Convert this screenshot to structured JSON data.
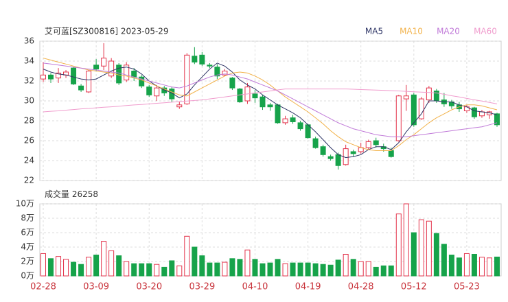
{
  "chart_data": {
    "type": "candlestick",
    "title": "艾可蓝[SZ300816] 2023-05-29",
    "categories": [
      "02-28",
      null,
      null,
      null,
      null,
      null,
      null,
      "03-09",
      null,
      null,
      null,
      null,
      null,
      null,
      "03-20",
      null,
      null,
      null,
      null,
      null,
      null,
      "03-29",
      null,
      null,
      null,
      null,
      null,
      null,
      "04-10",
      null,
      null,
      null,
      null,
      null,
      null,
      "04-19",
      null,
      null,
      null,
      null,
      null,
      null,
      "04-28",
      null,
      null,
      null,
      null,
      null,
      null,
      "05-12",
      null,
      null,
      null,
      null,
      null,
      null,
      "05-23",
      null,
      null,
      null,
      null
    ],
    "open": [
      32.2,
      32.6,
      32.3,
      32.6,
      33.3,
      31.5,
      30.9,
      33.6,
      33.5,
      32.5,
      33.6,
      32.1,
      33.0,
      32.4,
      31.4,
      30.5,
      31.3,
      31.2,
      29.4,
      29.7,
      34.5,
      34.6,
      33.6,
      33.4,
      32.6,
      32.3,
      31.2,
      30.0,
      30.7,
      30.4,
      29.6,
      29.6,
      27.8,
      28.3,
      27.8,
      27.6,
      26.2,
      25.4,
      24.4,
      24.6,
      23.6,
      24.9,
      24.9,
      25.3,
      26.0,
      25.4,
      25.0,
      26.0,
      30.2,
      30.6,
      28.2,
      30.1,
      31.0,
      30.1,
      29.9,
      29.6,
      29.0,
      29.3,
      28.5,
      28.6,
      28.7
    ],
    "high": [
      33.9,
      32.8,
      33.3,
      33.1,
      33.4,
      31.7,
      33.1,
      34.2,
      35.8,
      34.3,
      33.8,
      33.9,
      33.3,
      32.6,
      31.6,
      31.6,
      31.5,
      31.4,
      29.9,
      34.8,
      35.4,
      34.9,
      33.8,
      33.7,
      33.2,
      32.4,
      31.3,
      31.8,
      31.1,
      30.6,
      29.8,
      29.7,
      28.5,
      28.6,
      28.0,
      27.7,
      26.4,
      25.6,
      24.6,
      24.8,
      25.6,
      25.1,
      25.8,
      26.1,
      26.3,
      25.7,
      25.3,
      30.6,
      31.6,
      30.8,
      30.4,
      31.5,
      31.2,
      30.8,
      30.1,
      29.9,
      29.6,
      29.4,
      29.1,
      29.0,
      28.8
    ],
    "low": [
      31.9,
      31.8,
      31.8,
      32.3,
      31.6,
      30.9,
      30.8,
      33.0,
      33.1,
      32.3,
      31.6,
      31.9,
      32.0,
      31.3,
      30.4,
      30.0,
      30.5,
      29.9,
      29.2,
      29.6,
      33.7,
      33.5,
      33.3,
      32.2,
      32.5,
      31.1,
      29.8,
      29.7,
      29.8,
      29.1,
      29.0,
      27.7,
      27.6,
      27.7,
      27.0,
      26.2,
      25.2,
      24.4,
      24.0,
      23.1,
      23.5,
      24.4,
      24.7,
      25.1,
      25.3,
      24.9,
      24.3,
      25.9,
      29.0,
      27.4,
      28.1,
      29.8,
      29.8,
      29.4,
      29.2,
      28.9,
      28.8,
      28.2,
      28.3,
      28.2,
      27.4
    ],
    "close": [
      32.6,
      32.2,
      32.8,
      32.9,
      31.7,
      31.1,
      33.0,
      33.2,
      34.3,
      34.0,
      31.8,
      33.6,
      32.4,
      31.5,
      30.6,
      31.3,
      30.8,
      30.2,
      29.6,
      34.6,
      33.9,
      33.7,
      33.5,
      32.5,
      33.0,
      31.3,
      29.9,
      31.4,
      30.3,
      29.4,
      29.4,
      27.8,
      28.2,
      27.9,
      27.2,
      26.3,
      25.3,
      24.6,
      24.2,
      23.5,
      25.2,
      24.7,
      25.3,
      25.9,
      25.6,
      25.2,
      24.4,
      30.5,
      30.5,
      27.6,
      30.2,
      31.3,
      30.0,
      29.7,
      29.5,
      29.2,
      29.4,
      28.4,
      28.9,
      28.9,
      27.6
    ],
    "volume": [
      31000,
      24000,
      27000,
      23000,
      19000,
      16000,
      26000,
      29000,
      48000,
      35000,
      28000,
      20000,
      17000,
      17000,
      17000,
      16000,
      12000,
      21000,
      14000,
      55000,
      40000,
      28000,
      18000,
      18000,
      19000,
      24000,
      23000,
      36000,
      23000,
      17000,
      18000,
      23000,
      17000,
      18000,
      18000,
      18000,
      17000,
      16000,
      15000,
      22000,
      30000,
      23000,
      20000,
      20000,
      12000,
      14000,
      14000,
      86000,
      100000,
      60000,
      78000,
      76000,
      59000,
      44000,
      29000,
      25000,
      31000,
      30000,
      26000,
      25000,
      26258
    ],
    "volume_label": "成交量",
    "ylim": [
      22,
      36
    ],
    "yticks": [
      22,
      24,
      26,
      28,
      30,
      32,
      34,
      36
    ],
    "volume_ylim": [
      0,
      100000
    ],
    "volume_yticks": [
      {
        "value": 0,
        "label": "0万"
      },
      {
        "value": 20000,
        "label": "2万"
      },
      {
        "value": 40000,
        "label": "4万"
      },
      {
        "value": 60000,
        "label": "6万"
      },
      {
        "value": 80000,
        "label": "8万"
      },
      {
        "value": 100000,
        "label": "10万"
      }
    ],
    "up_color": "#e3324a",
    "down_color": "#16a34a",
    "grid": true,
    "ma": [
      {
        "name": "MA5",
        "color": "#2e3566",
        "values": [
          33.2,
          32.9,
          32.7,
          32.6,
          32.4,
          32.2,
          32.1,
          32.2,
          32.6,
          33.0,
          33.3,
          33.4,
          33.2,
          32.7,
          32.0,
          31.5,
          31.1,
          30.8,
          30.3,
          30.7,
          31.6,
          32.4,
          33.2,
          33.8,
          33.5,
          32.9,
          32.1,
          31.6,
          31.2,
          30.6,
          30.1,
          29.6,
          29.2,
          28.8,
          28.3,
          27.6,
          26.9,
          26.1,
          25.3,
          24.6,
          24.3,
          24.4,
          24.6,
          25.1,
          25.4,
          25.4,
          25.1,
          25.8,
          26.9,
          27.8,
          28.7,
          30.0,
          30.0,
          29.9,
          29.9,
          29.6,
          29.4,
          29.0,
          28.9,
          28.8,
          28.6
        ]
      },
      {
        "name": "MA10",
        "color": "#f2b24a",
        "values": [
          34.3,
          34.1,
          33.9,
          33.7,
          33.5,
          33.3,
          33.1,
          33.0,
          32.9,
          32.8,
          32.6,
          32.5,
          32.3,
          32.1,
          31.8,
          31.5,
          31.2,
          30.9,
          30.6,
          30.5,
          30.9,
          31.3,
          31.7,
          32.1,
          32.5,
          32.8,
          32.9,
          32.8,
          32.5,
          32.1,
          31.6,
          31.0,
          30.4,
          29.9,
          29.4,
          28.9,
          28.3,
          27.7,
          27.0,
          26.4,
          25.9,
          25.6,
          25.3,
          25.1,
          25.0,
          25.0,
          25.0,
          25.5,
          26.1,
          26.6,
          27.2,
          27.8,
          28.3,
          28.7,
          29.1,
          29.4,
          29.6,
          29.6,
          29.5,
          29.3,
          29.1
        ]
      },
      {
        "name": "MA20",
        "color": "#c07ad8",
        "values": [
          33.8,
          33.7,
          33.6,
          33.5,
          33.4,
          33.3,
          33.2,
          33.1,
          33.0,
          32.9,
          32.8,
          32.6,
          32.4,
          32.2,
          32.0,
          31.8,
          31.6,
          31.4,
          31.3,
          31.5,
          31.8,
          32.1,
          32.4,
          32.6,
          32.7,
          32.6,
          32.4,
          32.2,
          31.9,
          31.6,
          31.3,
          31.0,
          30.6,
          30.2,
          29.8,
          29.4,
          29.0,
          28.6,
          28.2,
          27.8,
          27.5,
          27.2,
          27.0,
          26.8,
          26.6,
          26.5,
          26.4,
          26.4,
          26.4,
          26.5,
          26.6,
          26.7,
          26.8,
          26.9,
          27.0,
          27.1,
          27.2,
          27.3,
          27.4,
          27.6,
          27.8
        ]
      },
      {
        "name": "MA60",
        "color": "#f09ccd",
        "values": [
          28.9,
          28.96,
          29.0,
          29.07,
          29.13,
          29.2,
          29.24,
          29.3,
          29.36,
          29.41,
          29.47,
          29.53,
          29.59,
          29.64,
          29.7,
          29.76,
          29.81,
          29.87,
          29.93,
          29.98,
          30.04,
          30.1,
          30.2,
          30.3,
          30.4,
          30.5,
          30.6,
          30.7,
          30.8,
          30.9,
          31.0,
          31.1,
          31.2,
          31.2,
          31.2,
          31.2,
          31.2,
          31.2,
          31.2,
          31.2,
          31.2,
          31.17,
          31.14,
          31.11,
          31.09,
          31.06,
          31.03,
          31.0,
          30.96,
          30.92,
          30.88,
          30.84,
          30.8,
          30.66,
          30.52,
          30.39,
          30.25,
          30.11,
          29.98,
          29.84,
          29.7
        ]
      }
    ]
  }
}
